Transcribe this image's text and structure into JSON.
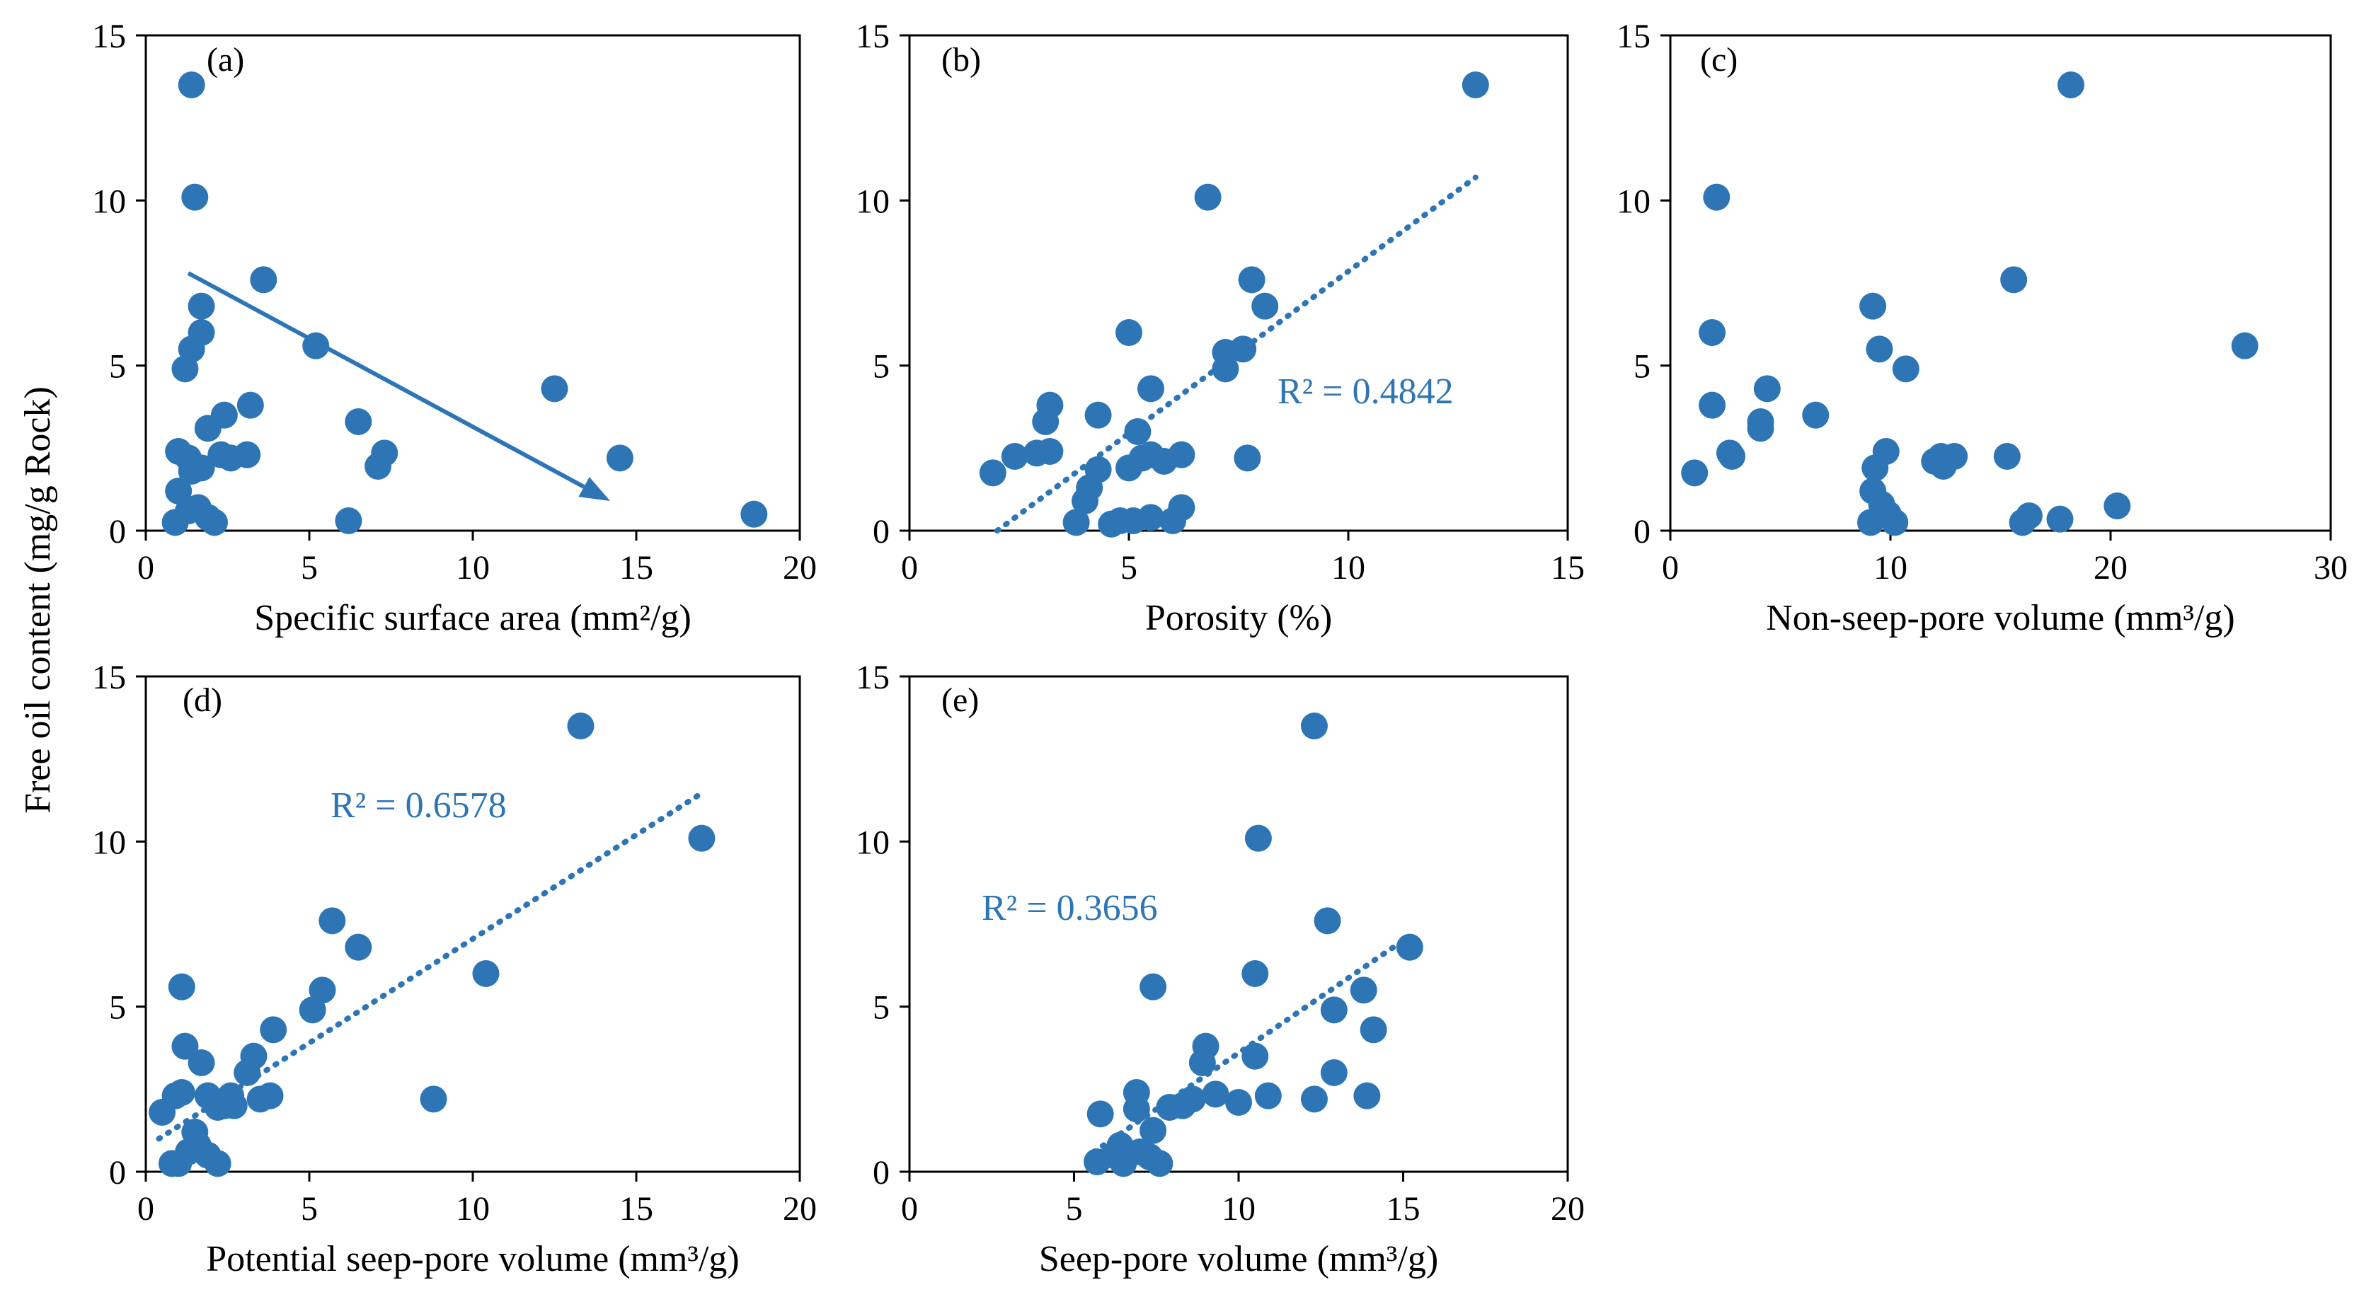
{
  "figure": {
    "shared_ylabel": "Free oil content (mg/g Rock)",
    "accent_color": "#2E75B6"
  },
  "chart_data": [
    {
      "id": "a",
      "type": "scatter",
      "panel_label": "(a)",
      "xlabel": "Specific surface area (mm²/g)",
      "xlim": [
        0,
        20
      ],
      "xticks": [
        0,
        5,
        10,
        15,
        20
      ],
      "ylim": [
        0,
        15
      ],
      "yticks": [
        0,
        5,
        10,
        15
      ],
      "points": [
        [
          1.4,
          13.5
        ],
        [
          1.5,
          10.1
        ],
        [
          3.6,
          7.6
        ],
        [
          1.7,
          6.8
        ],
        [
          1.7,
          6.0
        ],
        [
          5.2,
          5.6
        ],
        [
          1.4,
          5.5
        ],
        [
          1.2,
          4.9
        ],
        [
          12.5,
          4.3
        ],
        [
          3.2,
          3.8
        ],
        [
          2.4,
          3.5
        ],
        [
          6.5,
          3.3
        ],
        [
          1.9,
          3.1
        ],
        [
          2.3,
          2.3
        ],
        [
          2.6,
          2.2
        ],
        [
          3.1,
          2.3
        ],
        [
          1.0,
          2.4
        ],
        [
          1.3,
          2.2
        ],
        [
          14.5,
          2.2
        ],
        [
          7.3,
          2.35
        ],
        [
          7.1,
          1.95
        ],
        [
          1.7,
          1.9
        ],
        [
          1.4,
          1.8
        ],
        [
          1.0,
          1.2
        ],
        [
          1.6,
          0.7
        ],
        [
          1.3,
          0.6
        ],
        [
          1.9,
          0.4
        ],
        [
          2.1,
          0.25
        ],
        [
          0.9,
          0.25
        ],
        [
          6.2,
          0.3
        ],
        [
          18.6,
          0.5
        ]
      ],
      "arrow": {
        "from": [
          1.3,
          7.8
        ],
        "to": [
          14.2,
          0.9
        ]
      }
    },
    {
      "id": "b",
      "type": "scatter",
      "panel_label": "(b)",
      "xlabel": "Porosity (%)",
      "xlim": [
        0,
        15
      ],
      "xticks": [
        0,
        5,
        10,
        15
      ],
      "ylim": [
        0,
        15
      ],
      "yticks": [
        0,
        5,
        10,
        15
      ],
      "points": [
        [
          12.9,
          13.5
        ],
        [
          6.8,
          10.1
        ],
        [
          7.8,
          7.6
        ],
        [
          8.1,
          6.8
        ],
        [
          5.0,
          6.0
        ],
        [
          7.6,
          5.5
        ],
        [
          7.2,
          5.4
        ],
        [
          7.2,
          4.9
        ],
        [
          5.5,
          4.3
        ],
        [
          3.2,
          3.8
        ],
        [
          4.3,
          3.5
        ],
        [
          3.1,
          3.3
        ],
        [
          5.2,
          3.0
        ],
        [
          3.2,
          2.4
        ],
        [
          2.9,
          2.35
        ],
        [
          2.4,
          2.25
        ],
        [
          5.5,
          2.3
        ],
        [
          6.2,
          2.3
        ],
        [
          7.7,
          2.2
        ],
        [
          5.3,
          2.2
        ],
        [
          5.8,
          2.1
        ],
        [
          5.0,
          1.9
        ],
        [
          4.3,
          1.85
        ],
        [
          1.9,
          1.75
        ],
        [
          4.1,
          1.3
        ],
        [
          4.0,
          0.9
        ],
        [
          6.2,
          0.7
        ],
        [
          5.5,
          0.4
        ],
        [
          4.8,
          0.3
        ],
        [
          5.1,
          0.3
        ],
        [
          6.0,
          0.3
        ],
        [
          3.8,
          0.25
        ],
        [
          4.6,
          0.2
        ]
      ],
      "trendline": {
        "from": [
          2.0,
          0.0
        ],
        "to": [
          12.9,
          10.7
        ]
      },
      "annotation": "R² = 0.4842"
    },
    {
      "id": "c",
      "type": "scatter",
      "panel_label": "(c)",
      "xlabel": "Non-seep-pore volume (mm³/g)",
      "xlim": [
        0,
        30
      ],
      "xticks": [
        0,
        10,
        20,
        30
      ],
      "ylim": [
        0,
        15
      ],
      "yticks": [
        0,
        5,
        10,
        15
      ],
      "points": [
        [
          18.2,
          13.5
        ],
        [
          2.1,
          10.1
        ],
        [
          15.6,
          7.6
        ],
        [
          9.2,
          6.8
        ],
        [
          1.9,
          6.0
        ],
        [
          26.1,
          5.6
        ],
        [
          9.5,
          5.5
        ],
        [
          10.7,
          4.9
        ],
        [
          4.4,
          4.3
        ],
        [
          1.9,
          3.8
        ],
        [
          6.6,
          3.5
        ],
        [
          4.1,
          3.3
        ],
        [
          4.1,
          3.1
        ],
        [
          2.7,
          2.35
        ],
        [
          2.8,
          2.25
        ],
        [
          9.8,
          2.4
        ],
        [
          15.3,
          2.25
        ],
        [
          12.3,
          2.25
        ],
        [
          12.9,
          2.25
        ],
        [
          12.0,
          2.1
        ],
        [
          12.4,
          1.95
        ],
        [
          9.3,
          1.9
        ],
        [
          1.1,
          1.75
        ],
        [
          9.2,
          1.2
        ],
        [
          9.6,
          0.8
        ],
        [
          20.3,
          0.75
        ],
        [
          9.9,
          0.5
        ],
        [
          16.3,
          0.45
        ],
        [
          17.7,
          0.35
        ],
        [
          16.0,
          0.25
        ],
        [
          9.1,
          0.25
        ],
        [
          10.2,
          0.25
        ]
      ]
    },
    {
      "id": "d",
      "type": "scatter",
      "panel_label": "(d)",
      "xlabel": "Potential seep-pore volume (mm³/g)",
      "xlim": [
        0,
        20
      ],
      "xticks": [
        0,
        5,
        10,
        15,
        20
      ],
      "ylim": [
        0,
        15
      ],
      "yticks": [
        0,
        5,
        10,
        15
      ],
      "points": [
        [
          13.3,
          13.5
        ],
        [
          17.0,
          10.1
        ],
        [
          5.7,
          7.6
        ],
        [
          6.5,
          6.8
        ],
        [
          10.4,
          6.0
        ],
        [
          1.1,
          5.6
        ],
        [
          5.4,
          5.5
        ],
        [
          5.1,
          4.9
        ],
        [
          3.9,
          4.3
        ],
        [
          1.2,
          3.8
        ],
        [
          3.3,
          3.5
        ],
        [
          1.7,
          3.3
        ],
        [
          3.1,
          3.0
        ],
        [
          1.1,
          2.4
        ],
        [
          0.9,
          2.3
        ],
        [
          1.9,
          2.3
        ],
        [
          2.6,
          2.3
        ],
        [
          3.8,
          2.3
        ],
        [
          8.8,
          2.2
        ],
        [
          3.5,
          2.2
        ],
        [
          2.4,
          2.0
        ],
        [
          2.7,
          2.0
        ],
        [
          2.2,
          1.95
        ],
        [
          0.5,
          1.8
        ],
        [
          1.5,
          1.2
        ],
        [
          1.6,
          0.8
        ],
        [
          1.3,
          0.6
        ],
        [
          1.9,
          0.5
        ],
        [
          2.2,
          0.25
        ],
        [
          0.8,
          0.25
        ],
        [
          1.0,
          0.25
        ]
      ],
      "trendline": {
        "from": [
          0.4,
          1.0
        ],
        "to": [
          16.9,
          11.4
        ]
      },
      "annotation": "R² = 0.6578"
    },
    {
      "id": "e",
      "type": "scatter",
      "panel_label": "(e)",
      "xlabel": "Seep-pore volume (mm³/g)",
      "xlim": [
        0,
        20
      ],
      "xticks": [
        0,
        5,
        10,
        15,
        20
      ],
      "ylim": [
        0,
        15
      ],
      "yticks": [
        0,
        5,
        10,
        15
      ],
      "points": [
        [
          12.3,
          13.5
        ],
        [
          10.6,
          10.1
        ],
        [
          12.7,
          7.6
        ],
        [
          15.2,
          6.8
        ],
        [
          10.5,
          6.0
        ],
        [
          7.4,
          5.6
        ],
        [
          13.8,
          5.5
        ],
        [
          12.9,
          4.9
        ],
        [
          14.1,
          4.3
        ],
        [
          9.0,
          3.8
        ],
        [
          10.5,
          3.5
        ],
        [
          8.9,
          3.3
        ],
        [
          12.9,
          3.0
        ],
        [
          6.9,
          2.4
        ],
        [
          9.3,
          2.35
        ],
        [
          13.9,
          2.3
        ],
        [
          10.9,
          2.3
        ],
        [
          12.3,
          2.2
        ],
        [
          8.6,
          2.2
        ],
        [
          10.0,
          2.1
        ],
        [
          8.3,
          2.0
        ],
        [
          7.9,
          1.95
        ],
        [
          6.9,
          1.9
        ],
        [
          5.8,
          1.75
        ],
        [
          7.4,
          1.25
        ],
        [
          6.4,
          0.8
        ],
        [
          7.0,
          0.6
        ],
        [
          6.2,
          0.5
        ],
        [
          7.3,
          0.45
        ],
        [
          5.7,
          0.3
        ],
        [
          6.5,
          0.25
        ],
        [
          7.6,
          0.25
        ]
      ],
      "trendline": {
        "from": [
          5.6,
          0.6
        ],
        "to": [
          15.0,
          7.0
        ]
      },
      "annotation": "R² = 0.3656"
    }
  ]
}
